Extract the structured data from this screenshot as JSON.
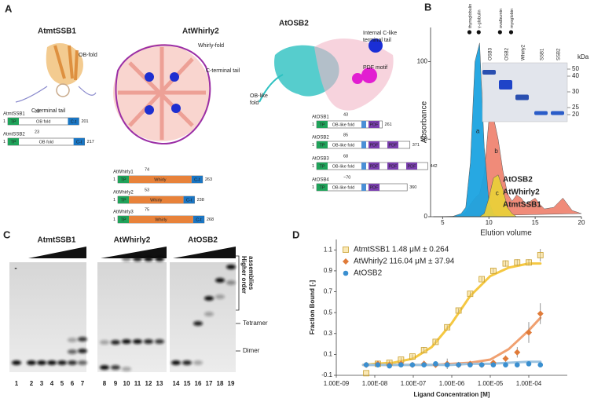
{
  "panel_a": {
    "label": "A",
    "structures": [
      {
        "title": "AtmtSSB1",
        "labels": [
          [
            "OB-fold"
          ],
          [
            "C-terminal  tail"
          ]
        ]
      },
      {
        "title": "AtWhirly2",
        "labels": [
          [
            "Whirly-fold"
          ],
          [
            "C-terminal  tail"
          ]
        ]
      },
      {
        "title": "AtOSB2",
        "labels": [
          [
            "Internal C-like",
            "terminal tail"
          ],
          [
            "PDF motif"
          ],
          [
            "OB-like",
            "fold"
          ]
        ]
      }
    ],
    "domains": [
      {
        "name": "AtmtSSB1",
        "start": 1,
        "tp_end": 38,
        "end": 201,
        "parts": [
          "TP",
          "OB fold",
          "C-t"
        ]
      },
      {
        "name": "AtmtSSB2",
        "start": 1,
        "tp_end": 23,
        "end": 217,
        "parts": [
          "TP",
          "OB fold",
          "C-t"
        ]
      },
      {
        "name": "AtWhirly1",
        "start": 1,
        "tp_end": 74,
        "end": 263,
        "parts": [
          "TP",
          "Whirly",
          "C-t"
        ]
      },
      {
        "name": "AtWhirly2",
        "start": 1,
        "tp_end": 53,
        "end": 238,
        "parts": [
          "TP",
          "Whirly",
          "C-t"
        ]
      },
      {
        "name": "AtWhirly3",
        "start": 1,
        "tp_end": 75,
        "end": 268,
        "parts": [
          "TP",
          "Whirly",
          "C-t"
        ]
      },
      {
        "name": "AtOSB1",
        "start": 1,
        "tp_end": 43,
        "end": 261,
        "parts": [
          "TP",
          "OB-like fold",
          "PDF"
        ]
      },
      {
        "name": "AtOSB2",
        "start": 1,
        "tp_end": 85,
        "end": 371,
        "parts": [
          "TP",
          "OB-like fold",
          "PDF",
          "PDF"
        ]
      },
      {
        "name": "AtOSB3",
        "start": 1,
        "tp_end": 68,
        "end": 442,
        "parts": [
          "TP",
          "OB-like fold",
          "PDF",
          "PDF",
          "PDF"
        ]
      },
      {
        "name": "AtOSB4",
        "start": 1,
        "tp_end": "~70",
        "end": 360,
        "parts": [
          "TP",
          "OB-like fold",
          "PDF"
        ]
      }
    ]
  },
  "panel_b": {
    "label": "B",
    "gel": {
      "lanes": [
        "OSB3",
        "OSB2",
        "Whirly2",
        "SSB1",
        "SSB2"
      ],
      "unit": "kDa",
      "markers": [
        50,
        40,
        30,
        25,
        20
      ]
    }
  },
  "panel_c": {
    "label": "C",
    "titles": [
      "AtmtSSB1",
      "AtWhirly2",
      "AtOSB2"
    ],
    "control": "-",
    "lanes": [
      1,
      2,
      3,
      4,
      5,
      6,
      7,
      8,
      9,
      10,
      11,
      12,
      13,
      14,
      15,
      16,
      17,
      18,
      19
    ],
    "higher_order": [
      "Higher order",
      "assemblies"
    ],
    "tetramer": "Tetramer",
    "dimer": "Dimer"
  },
  "panel_d": {
    "label": "D"
  },
  "chart_data": [
    {
      "type": "area",
      "x_label": "Elution volume",
      "y_label": "Absorbance",
      "x": [
        4,
        5,
        6,
        7,
        7.5,
        8,
        8.5,
        9,
        9.5,
        10,
        10.5,
        11,
        11.5,
        12,
        12.5,
        13,
        13.5,
        14,
        14.5,
        15,
        15.5,
        16,
        17,
        18,
        19,
        20
      ],
      "series": [
        {
          "name": "AtOSB2",
          "color": "#1ba3e0",
          "values": [
            0,
            0,
            0,
            2,
            6,
            35,
            100,
            112,
            45,
            10,
            2,
            0,
            0,
            0,
            0,
            0,
            0,
            0,
            0,
            0,
            0,
            0,
            0,
            0,
            0,
            0
          ]
        },
        {
          "name": "AtWhirly2",
          "color": "#ef8572",
          "values": [
            0,
            0,
            0,
            1,
            3,
            8,
            12,
            15,
            28,
            62,
            64,
            50,
            30,
            15,
            10,
            14,
            12,
            8,
            10,
            12,
            8,
            5,
            6,
            12,
            4,
            2
          ]
        },
        {
          "name": "AtmtSSB1",
          "color": "#e9cf3a",
          "values": [
            0,
            0,
            0,
            0,
            0,
            0,
            0,
            0,
            2,
            12,
            25,
            27,
            18,
            6,
            2,
            0,
            0,
            0,
            0,
            0,
            0,
            0,
            0,
            0,
            0,
            0
          ]
        }
      ],
      "annotations": [
        {
          "text": "a",
          "x": 8.8,
          "y": 55
        },
        {
          "text": "b",
          "x": 10.8,
          "y": 42
        },
        {
          "text": "c",
          "x": 10.9,
          "y": 15
        }
      ],
      "markers": [
        {
          "label": "thyroglobulin",
          "x": 7.9
        },
        {
          "label": "γ-globulin",
          "x": 8.9
        },
        {
          "label": "ovalbumin",
          "x": 11.2
        },
        {
          "label": "myoglobin",
          "x": 12.4
        }
      ],
      "xlim": [
        3.7,
        20
      ],
      "xticks": [
        5,
        10,
        15,
        20
      ],
      "ylim": [
        0,
        122
      ],
      "yticks": [
        0,
        50,
        100
      ]
    },
    {
      "type": "scatter",
      "x_label": "Ligand Concentration [M]",
      "y_label": "Fraction Bound [-]",
      "x": [
        6e-09,
        1.2e-08,
        2.4e-08,
        4.8e-08,
        9.5e-08,
        1.9e-07,
        3.8e-07,
        7.6e-07,
        1.5e-06,
        3e-06,
        6e-06,
        1.2e-05,
        2.5e-05,
        5e-05,
        0.0001,
        0.0002
      ],
      "fit_x": [
        5e-09,
        1e-08,
        3e-08,
        1e-07,
        3e-07,
        1e-06,
        3e-06,
        1e-05,
        3e-05,
        0.0001,
        0.0002
      ],
      "log_x": true,
      "series": [
        {
          "name": "AtmtSSB1 1.48 μM ± 0.264",
          "color": "#f7d36b",
          "marker": "square",
          "values": [
            -0.08,
            0.01,
            0.02,
            0.05,
            0.08,
            0.14,
            0.22,
            0.36,
            0.52,
            0.68,
            0.82,
            0.9,
            0.97,
            0.98,
            0.98,
            1.05
          ],
          "errors": [
            0,
            0.01,
            0.02,
            0.02,
            0.02,
            0.03,
            0.02,
            0.02,
            0.02,
            0.02,
            0.02,
            0.02,
            0.03,
            0.03,
            0.03,
            0.06
          ],
          "fit": [
            0,
            0.01,
            0.02,
            0.06,
            0.17,
            0.4,
            0.66,
            0.85,
            0.93,
            0.97,
            0.97
          ]
        },
        {
          "name": "AtWhirly2 116.04 μM ± 37.94",
          "color": "#e07b39",
          "marker": "diamond",
          "values": [
            0,
            0.01,
            0,
            0.01,
            0,
            0.01,
            0,
            0.01,
            0,
            0.01,
            0,
            0.02,
            0.06,
            0.12,
            0.31,
            0.49
          ],
          "errors": [
            0.02,
            0.03,
            0.02,
            0.03,
            0.02,
            0.03,
            0.02,
            0.05,
            0.02,
            0.02,
            0.02,
            0.02,
            0.03,
            0.05,
            0.1,
            0.1
          ],
          "fit": [
            0,
            0,
            0,
            0,
            0,
            0.01,
            0.02,
            0.05,
            0.15,
            0.33,
            0.45
          ]
        },
        {
          "name": "AtOSB2",
          "color": "#3a8fd0",
          "marker": "circle",
          "values": [
            0,
            0,
            -0.01,
            0,
            0,
            0,
            0.01,
            0,
            0,
            0,
            0,
            0,
            0,
            0,
            0.01,
            0
          ],
          "fit": [
            0,
            0,
            0,
            0,
            0,
            0,
            0.01,
            0.01,
            0.02,
            0.03,
            0.03
          ]
        }
      ],
      "xlim": [
        1e-09,
        0.001
      ],
      "xticks": [
        {
          "value": 1e-09,
          "label": "1.00E-09"
        },
        {
          "value": 1e-08,
          "label": "1.00E-08"
        },
        {
          "value": 1e-07,
          "label": "1.00E-07"
        },
        {
          "value": 1e-06,
          "label": "1.00E-06"
        },
        {
          "value": 1e-05,
          "label": "1.00E-05"
        },
        {
          "value": 0.0001,
          "label": "1.00E-04"
        }
      ],
      "ylim": [
        -0.1,
        1.2
      ],
      "yticks": [
        -0.1,
        0.1,
        0.3,
        0.5,
        0.7,
        0.9,
        1.1
      ],
      "legend": "upper-left"
    }
  ]
}
